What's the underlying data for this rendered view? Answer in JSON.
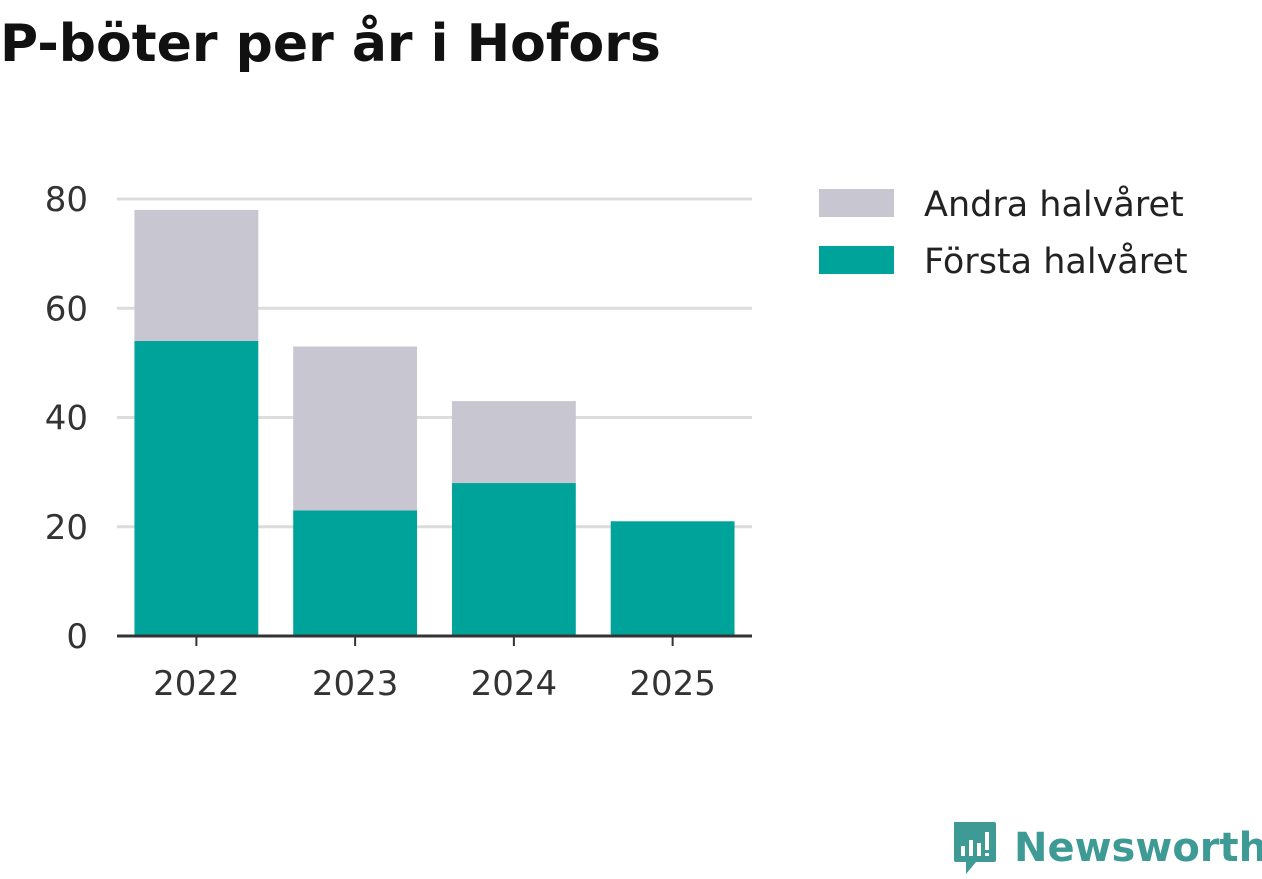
{
  "chart_data": {
    "type": "bar",
    "stacked": true,
    "title": "P-böter per år i Hofors",
    "xlabel": "",
    "ylabel": "",
    "categories": [
      "2022",
      "2023",
      "2024",
      "2025"
    ],
    "series": [
      {
        "name": "Första halvåret",
        "values": [
          54,
          23,
          28,
          21
        ],
        "color": "#00a39a"
      },
      {
        "name": "Andra halvåret",
        "values": [
          24,
          30,
          15,
          0
        ],
        "color": "#c7c6d1"
      }
    ],
    "legend_order": [
      "Andra halvåret",
      "Första halvåret"
    ],
    "ylim": [
      0,
      80
    ],
    "yticks": [
      "0",
      "20",
      "40",
      "60",
      "80"
    ],
    "grid": true,
    "legend_position": "right"
  },
  "brand": {
    "name": "Newsworthy",
    "icon": "newsworthy-logo-icon",
    "color": "#3e9a94"
  }
}
